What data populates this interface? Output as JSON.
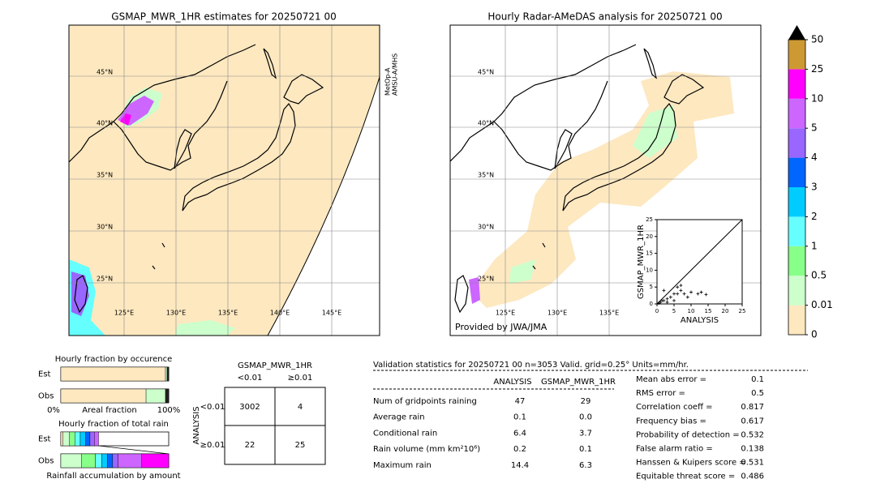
{
  "maps": [
    {
      "title": "GSMAP_MWR_1HR estimates for 20250721 00",
      "lat_labels": [
        "45°N",
        "40°N",
        "35°N",
        "30°N",
        "25°N"
      ],
      "lon_labels": [
        "125°E",
        "130°E",
        "135°E",
        "140°E",
        "145°E"
      ],
      "side_label": [
        "MetOp-A",
        "AMSU-A/MHS"
      ]
    },
    {
      "title": "Hourly Radar-AMeDAS analysis for 20250721 00",
      "lat_labels": [
        "45°N",
        "40°N",
        "35°N",
        "30°N",
        "25°N"
      ],
      "lon_labels": [
        "125°E",
        "130°E",
        "135°E"
      ],
      "credit": "Provided by JWA/JMA"
    }
  ],
  "scatter": {
    "type": "scatter",
    "x_label": "ANALYSIS",
    "y_label": "GSMAP_MWR_1HR",
    "xlim": [
      0,
      25
    ],
    "ylim": [
      0,
      25
    ],
    "xticks": [
      0,
      5,
      10,
      15,
      20,
      25
    ],
    "yticks": [
      0,
      5,
      10,
      15,
      20,
      25
    ],
    "x": [
      0.5,
      1,
      1.5,
      2,
      2,
      3,
      3,
      4,
      5,
      5,
      6,
      6,
      7,
      7,
      8,
      9,
      10,
      12,
      13,
      14.4
    ],
    "y": [
      0.2,
      0.5,
      1,
      1,
      4,
      0.5,
      1.5,
      2,
      1,
      3,
      3,
      5,
      4,
      5.5,
      3,
      2,
      3.5,
      3,
      3.5,
      2.8
    ]
  },
  "colorbar": {
    "ticks": [
      0,
      0.01,
      0.5,
      1,
      2,
      3,
      4,
      5,
      10,
      25,
      50
    ],
    "colors": [
      "#fde8c0",
      "#ccffcc",
      "#88ff88",
      "#66ffff",
      "#00ccff",
      "#0066ff",
      "#9966ff",
      "#cc66ff",
      "#ff00ff",
      "#cc9933"
    ]
  },
  "occurrence": {
    "title": "Hourly fraction by occurence",
    "rows": [
      "Est",
      "Obs"
    ],
    "axis_labels": [
      "0%",
      "Areal fraction",
      "100%"
    ],
    "est": [
      97,
      1.5,
      1.5
    ],
    "obs": [
      79,
      18,
      3
    ],
    "colors": [
      "#fde8c0",
      "#ccffcc",
      "#222222"
    ]
  },
  "total_rain": {
    "title": "Hourly fraction of total rain",
    "rows": [
      "Est",
      "Obs"
    ],
    "footer": "Rainfall accumulation by amount",
    "est": [
      2,
      6,
      5,
      5,
      5,
      4,
      4,
      4,
      0
    ],
    "obs": [
      0,
      19,
      13,
      6,
      5,
      5,
      5,
      22,
      25
    ],
    "colors": [
      "#fde8c0",
      "#ccffcc",
      "#88ff88",
      "#66ffff",
      "#00ccff",
      "#0066ff",
      "#9966ff",
      "#cc66ff",
      "#ff00ff"
    ]
  },
  "contingency": {
    "title": "GSMAP_MWR_1HR",
    "columns": [
      "<0.01",
      "≥0.01"
    ],
    "row_axis": "ANALYSIS",
    "rows": [
      "<0.01",
      "≥0.01"
    ],
    "cells": [
      [
        3002,
        4
      ],
      [
        22,
        25
      ]
    ]
  },
  "validation": {
    "title": "Validation statistics for 20250721 00  n=3053 Valid. grid=0.25° Units=mm/hr.",
    "columns": [
      "ANALYSIS",
      "GSMAP_MWR_1HR"
    ],
    "rows": [
      [
        "Num of gridpoints raining",
        "47",
        "29"
      ],
      [
        "Average rain",
        "0.1",
        "0.0"
      ],
      [
        "Conditional rain",
        "6.4",
        "3.7"
      ],
      [
        "Rain volume (mm km²10⁶)",
        "0.2",
        "0.1"
      ],
      [
        "Maximum rain",
        "14.4",
        "6.3"
      ]
    ]
  },
  "scores": [
    [
      "Mean abs error =",
      "0.1"
    ],
    [
      "RMS error =",
      "0.5"
    ],
    [
      "Correlation coeff =",
      "0.817"
    ],
    [
      "Frequency bias =",
      "0.617"
    ],
    [
      "Probability of detection =",
      "0.532"
    ],
    [
      "False alarm ratio =",
      "0.138"
    ],
    [
      "Hanssen & Kuipers score =",
      "0.531"
    ],
    [
      "Equitable threat score =",
      "0.486"
    ]
  ]
}
